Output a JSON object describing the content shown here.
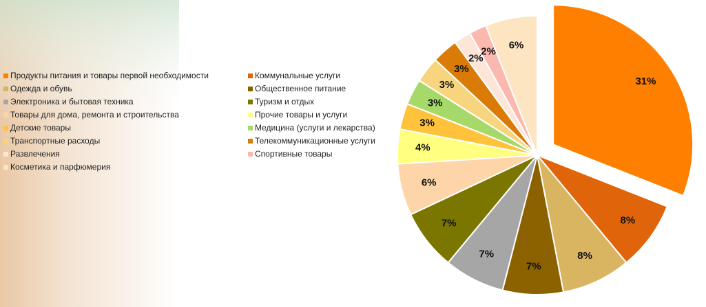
{
  "chart_data": {
    "type": "pie",
    "categories": [
      "Продукты питания и товары первой необходимости",
      "Коммунальные услуги",
      "Одежда и обувь",
      "Общественное питание",
      "Электроника и бытовая техника",
      "Туризм и отдых",
      "Товары для дома, ремонта и строительства",
      "Прочие товары и услуги",
      "Детские товары",
      "Медицина (услуги и лекарства)",
      "Транспортные расходы",
      "Телекоммуникационные услуги",
      "Развлечения",
      "Спортивные товары",
      "Косметика и парфюмерия"
    ],
    "values": [
      31,
      8,
      8,
      7,
      7,
      7,
      6,
      4,
      3,
      3,
      3,
      3,
      2,
      2,
      6
    ],
    "value_labels": [
      "31%",
      "8%",
      "8%",
      "7%",
      "7%",
      "7%",
      "6%",
      "4%",
      "3%",
      "3%",
      "3%",
      "3%",
      "2%",
      "2%",
      "6%"
    ],
    "colors": [
      "#ff7f00",
      "#e0650a",
      "#d9b562",
      "#8c6100",
      "#a6a6a6",
      "#7a7600",
      "#fdd5a8",
      "#ffff80",
      "#ffc23a",
      "#a6d96a",
      "#f7d57e",
      "#d97b06",
      "#fde6d8",
      "#fbb8ae",
      "#fce5c0"
    ]
  }
}
